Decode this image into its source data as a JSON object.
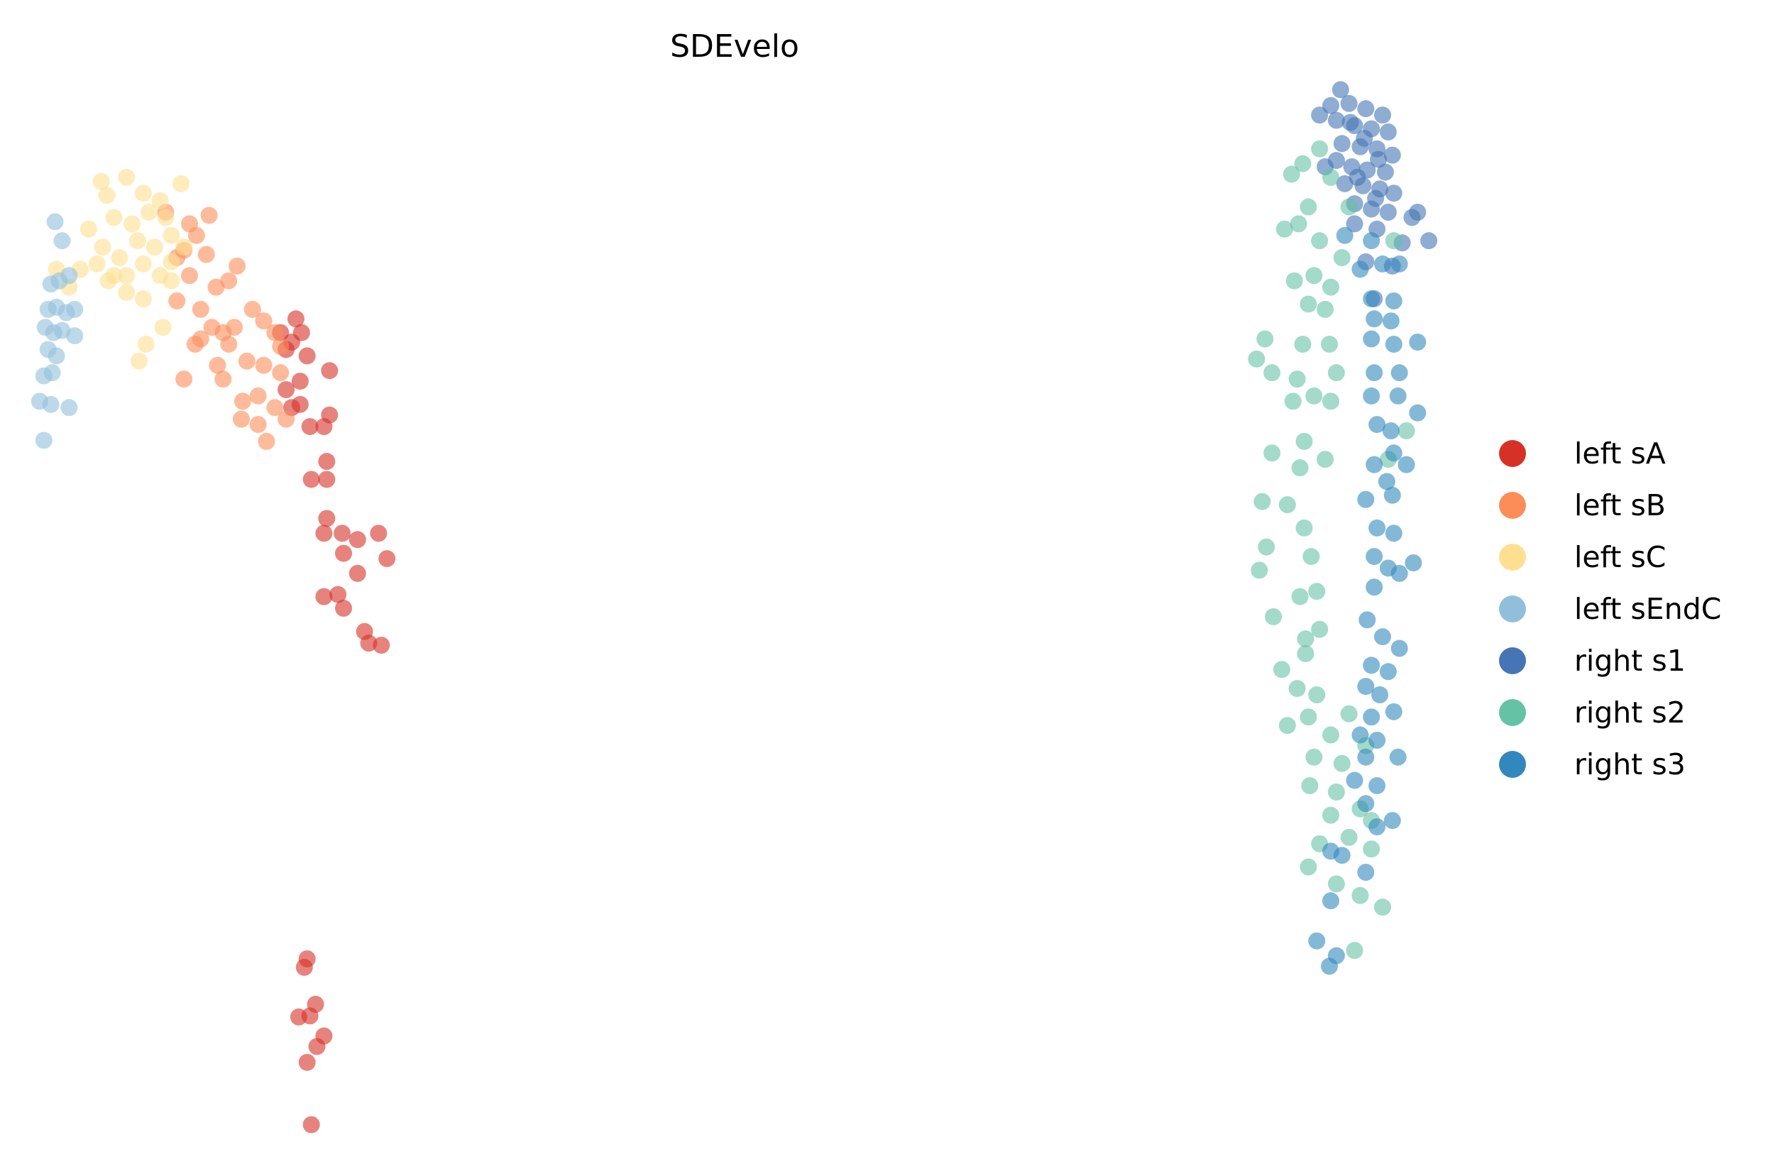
{
  "chart_data": {
    "type": "scatter",
    "title": "SDEvelo",
    "xlabel": "",
    "ylabel": "",
    "xlim": [
      0,
      100
    ],
    "ylim": [
      0,
      100
    ],
    "grid": false,
    "axes_visible": false,
    "legend_placement": "right",
    "marker_alpha": 0.6,
    "series": [
      {
        "name": "left sA",
        "color": "#d73027",
        "points": [
          [
            18.7,
            77.4
          ],
          [
            18.4,
            75.2
          ],
          [
            18.0,
            74.5
          ],
          [
            19.5,
            73.9
          ],
          [
            21.1,
            72.5
          ],
          [
            19.0,
            71.5
          ],
          [
            18.0,
            70.7
          ],
          [
            18.4,
            69.0
          ],
          [
            19.0,
            69.3
          ],
          [
            19.7,
            67.2
          ],
          [
            21.1,
            68.3
          ],
          [
            20.7,
            67.2
          ],
          [
            20.9,
            63.9
          ],
          [
            19.8,
            62.2
          ],
          [
            20.9,
            62.2
          ],
          [
            20.9,
            58.5
          ],
          [
            22.0,
            57.1
          ],
          [
            20.7,
            57.1
          ],
          [
            23.1,
            56.5
          ],
          [
            24.6,
            57.1
          ],
          [
            25.2,
            54.7
          ],
          [
            22.1,
            55.2
          ],
          [
            23.1,
            53.3
          ],
          [
            21.7,
            51.3
          ],
          [
            20.7,
            51.1
          ],
          [
            22.1,
            50.0
          ],
          [
            23.6,
            47.8
          ],
          [
            23.9,
            46.7
          ],
          [
            24.8,
            46.5
          ],
          [
            19.5,
            16.8
          ],
          [
            19.3,
            16.0
          ],
          [
            20.1,
            12.5
          ],
          [
            19.7,
            11.4
          ],
          [
            18.9,
            11.3
          ],
          [
            20.7,
            9.5
          ],
          [
            20.2,
            8.5
          ],
          [
            19.5,
            7.0
          ],
          [
            19.8,
            1.1
          ],
          [
            17.6,
            76.1
          ],
          [
            19.1,
            76.1
          ]
        ]
      },
      {
        "name": "left sB",
        "color": "#fc8d59",
        "points": [
          [
            9.4,
            87.5
          ],
          [
            12.5,
            87.2
          ],
          [
            11.1,
            86.4
          ],
          [
            11.6,
            85.3
          ],
          [
            10.7,
            83.9
          ],
          [
            12.3,
            83.5
          ],
          [
            14.5,
            82.4
          ],
          [
            13.9,
            81.0
          ],
          [
            11.1,
            81.5
          ],
          [
            10.2,
            79.1
          ],
          [
            11.9,
            78.3
          ],
          [
            12.7,
            76.6
          ],
          [
            13.5,
            76.1
          ],
          [
            11.9,
            75.5
          ],
          [
            13.9,
            75.0
          ],
          [
            15.6,
            78.3
          ],
          [
            16.4,
            77.2
          ],
          [
            17.2,
            76.1
          ],
          [
            15.2,
            73.4
          ],
          [
            16.4,
            73.0
          ],
          [
            17.6,
            72.3
          ],
          [
            10.7,
            71.7
          ],
          [
            13.5,
            71.7
          ],
          [
            14.9,
            69.6
          ],
          [
            16.0,
            70.1
          ],
          [
            17.2,
            69.0
          ],
          [
            16.0,
            67.4
          ],
          [
            16.6,
            65.8
          ],
          [
            18.0,
            67.9
          ],
          [
            14.8,
            67.9
          ],
          [
            17.6,
            74.8
          ],
          [
            13.0,
            80.4
          ],
          [
            10.2,
            83.2
          ],
          [
            11.5,
            75.0
          ],
          [
            14.3,
            76.6
          ],
          [
            13.1,
            73.0
          ]
        ]
      },
      {
        "name": "left sC",
        "color": "#fee090",
        "points": [
          [
            4.8,
            90.4
          ],
          [
            6.6,
            90.8
          ],
          [
            10.5,
            90.2
          ],
          [
            5.2,
            89.1
          ],
          [
            7.8,
            89.3
          ],
          [
            9.0,
            88.6
          ],
          [
            5.7,
            87.0
          ],
          [
            8.2,
            87.5
          ],
          [
            7.0,
            86.4
          ],
          [
            3.9,
            85.9
          ],
          [
            9.4,
            87.0
          ],
          [
            4.9,
            84.2
          ],
          [
            6.1,
            83.2
          ],
          [
            7.4,
            84.8
          ],
          [
            8.6,
            84.2
          ],
          [
            9.8,
            85.3
          ],
          [
            10.7,
            84.2
          ],
          [
            3.3,
            82.1
          ],
          [
            4.5,
            82.6
          ],
          [
            5.7,
            81.5
          ],
          [
            7.8,
            82.6
          ],
          [
            9.0,
            81.5
          ],
          [
            6.6,
            79.9
          ],
          [
            7.8,
            79.3
          ],
          [
            9.8,
            81.0
          ],
          [
            2.5,
            80.4
          ],
          [
            1.6,
            82.1
          ],
          [
            6.6,
            81.5
          ],
          [
            8.0,
            75.0
          ],
          [
            7.5,
            73.4
          ],
          [
            9.2,
            76.6
          ],
          [
            5.3,
            81.0
          ],
          [
            9.8,
            82.8
          ]
        ]
      },
      {
        "name": "left sEndC",
        "color": "#91bfdb",
        "points": [
          [
            1.5,
            86.6
          ],
          [
            2.0,
            84.8
          ],
          [
            1.2,
            80.7
          ],
          [
            1.8,
            81.0
          ],
          [
            1.0,
            78.3
          ],
          [
            1.6,
            78.5
          ],
          [
            2.3,
            78.0
          ],
          [
            0.8,
            76.6
          ],
          [
            1.4,
            76.1
          ],
          [
            2.0,
            76.3
          ],
          [
            2.9,
            75.8
          ],
          [
            1.0,
            74.5
          ],
          [
            1.6,
            73.9
          ],
          [
            0.7,
            72.0
          ],
          [
            1.3,
            72.3
          ],
          [
            0.4,
            69.6
          ],
          [
            1.2,
            69.3
          ],
          [
            2.5,
            69.0
          ],
          [
            0.7,
            65.9
          ],
          [
            2.5,
            81.5
          ],
          [
            2.9,
            78.3
          ]
        ]
      },
      {
        "name": "right s1",
        "color": "#4575b4",
        "points": [
          [
            93.3,
            99.1
          ],
          [
            92.6,
            97.6
          ],
          [
            93.9,
            97.8
          ],
          [
            95.1,
            97.3
          ],
          [
            96.3,
            96.7
          ],
          [
            93.0,
            96.2
          ],
          [
            94.3,
            95.7
          ],
          [
            95.5,
            95.4
          ],
          [
            96.7,
            95.1
          ],
          [
            93.4,
            94.0
          ],
          [
            94.7,
            93.7
          ],
          [
            95.9,
            93.5
          ],
          [
            97.0,
            92.9
          ],
          [
            93.0,
            92.4
          ],
          [
            94.1,
            91.8
          ],
          [
            95.2,
            91.5
          ],
          [
            96.5,
            91.3
          ],
          [
            93.6,
            90.2
          ],
          [
            94.9,
            90.0
          ],
          [
            96.1,
            89.7
          ],
          [
            97.1,
            89.3
          ],
          [
            94.3,
            88.3
          ],
          [
            95.5,
            87.8
          ],
          [
            96.7,
            87.5
          ],
          [
            98.8,
            87.5
          ],
          [
            99.6,
            84.8
          ],
          [
            97.7,
            84.6
          ],
          [
            94.3,
            86.4
          ],
          [
            95.9,
            85.9
          ],
          [
            95.1,
            82.8
          ],
          [
            97.0,
            82.4
          ],
          [
            91.8,
            96.7
          ],
          [
            92.2,
            91.8
          ],
          [
            95.7,
            79.3
          ],
          [
            98.4,
            87.0
          ],
          [
            94.0,
            96.0
          ],
          [
            95.0,
            94.5
          ],
          [
            96.0,
            92.5
          ],
          [
            94.5,
            90.8
          ],
          [
            95.8,
            88.8
          ]
        ]
      },
      {
        "name": "right s2",
        "color": "#66c2a5",
        "points": [
          [
            90.6,
            92.1
          ],
          [
            89.8,
            91.1
          ],
          [
            92.6,
            90.8
          ],
          [
            91.0,
            88.0
          ],
          [
            89.3,
            85.9
          ],
          [
            90.3,
            86.4
          ],
          [
            91.8,
            84.8
          ],
          [
            93.4,
            83.2
          ],
          [
            90.0,
            81.0
          ],
          [
            91.4,
            81.5
          ],
          [
            92.6,
            80.4
          ],
          [
            91.0,
            78.8
          ],
          [
            92.2,
            78.3
          ],
          [
            87.9,
            75.5
          ],
          [
            87.3,
            73.6
          ],
          [
            88.4,
            72.3
          ],
          [
            90.6,
            75.0
          ],
          [
            92.5,
            75.0
          ],
          [
            93.0,
            72.3
          ],
          [
            90.2,
            71.7
          ],
          [
            91.4,
            70.1
          ],
          [
            89.9,
            69.6
          ],
          [
            92.6,
            69.6
          ],
          [
            90.7,
            65.8
          ],
          [
            88.4,
            64.7
          ],
          [
            90.4,
            63.3
          ],
          [
            92.2,
            64.1
          ],
          [
            89.5,
            59.8
          ],
          [
            87.7,
            60.1
          ],
          [
            90.7,
            57.6
          ],
          [
            91.2,
            54.9
          ],
          [
            88.0,
            55.8
          ],
          [
            87.5,
            53.6
          ],
          [
            90.4,
            51.1
          ],
          [
            91.6,
            51.6
          ],
          [
            88.5,
            49.2
          ],
          [
            90.8,
            47.1
          ],
          [
            91.8,
            48.0
          ],
          [
            89.1,
            44.2
          ],
          [
            90.8,
            45.7
          ],
          [
            90.2,
            42.4
          ],
          [
            91.6,
            41.8
          ],
          [
            89.5,
            38.9
          ],
          [
            91.0,
            39.7
          ],
          [
            92.6,
            38.0
          ],
          [
            93.9,
            40.0
          ],
          [
            91.4,
            35.9
          ],
          [
            93.4,
            35.3
          ],
          [
            95.1,
            37.0
          ],
          [
            91.1,
            33.2
          ],
          [
            93.0,
            32.6
          ],
          [
            92.6,
            30.4
          ],
          [
            94.7,
            31.0
          ],
          [
            91.8,
            27.7
          ],
          [
            93.9,
            28.3
          ],
          [
            95.5,
            27.2
          ],
          [
            96.7,
            64.1
          ],
          [
            98.0,
            66.8
          ],
          [
            93.0,
            23.9
          ],
          [
            91.0,
            25.5
          ],
          [
            94.7,
            22.8
          ],
          [
            96.3,
            21.7
          ],
          [
            94.3,
            17.6
          ],
          [
            95.5,
            29.9
          ],
          [
            93.9,
            88.0
          ],
          [
            91.8,
            93.5
          ],
          [
            97.1,
            84.8
          ]
        ]
      },
      {
        "name": "right s3",
        "color": "#3288bd",
        "points": [
          [
            95.5,
            84.8
          ],
          [
            96.3,
            82.6
          ],
          [
            94.7,
            82.1
          ],
          [
            97.5,
            82.6
          ],
          [
            95.5,
            79.3
          ],
          [
            97.1,
            79.1
          ],
          [
            95.7,
            77.4
          ],
          [
            96.9,
            77.2
          ],
          [
            95.5,
            75.5
          ],
          [
            97.1,
            75.0
          ],
          [
            98.8,
            75.2
          ],
          [
            95.7,
            72.3
          ],
          [
            97.5,
            72.3
          ],
          [
            95.5,
            70.1
          ],
          [
            97.4,
            70.1
          ],
          [
            98.8,
            68.5
          ],
          [
            95.9,
            67.4
          ],
          [
            96.9,
            66.8
          ],
          [
            95.7,
            63.6
          ],
          [
            97.1,
            64.7
          ],
          [
            98.0,
            63.6
          ],
          [
            96.6,
            62.0
          ],
          [
            95.1,
            60.3
          ],
          [
            97.0,
            60.7
          ],
          [
            95.9,
            57.6
          ],
          [
            97.1,
            57.1
          ],
          [
            98.5,
            54.3
          ],
          [
            95.7,
            54.9
          ],
          [
            96.7,
            53.8
          ],
          [
            95.7,
            52.0
          ],
          [
            97.5,
            53.3
          ],
          [
            95.2,
            48.9
          ],
          [
            96.3,
            47.3
          ],
          [
            97.5,
            46.2
          ],
          [
            95.5,
            44.6
          ],
          [
            96.7,
            44.0
          ],
          [
            95.1,
            42.6
          ],
          [
            96.1,
            41.8
          ],
          [
            97.1,
            40.2
          ],
          [
            95.5,
            39.7
          ],
          [
            94.7,
            38.0
          ],
          [
            95.9,
            37.5
          ],
          [
            97.4,
            35.9
          ],
          [
            95.1,
            35.9
          ],
          [
            94.3,
            33.7
          ],
          [
            95.9,
            33.2
          ],
          [
            95.1,
            31.5
          ],
          [
            97.0,
            29.9
          ],
          [
            92.6,
            27.0
          ],
          [
            93.4,
            26.6
          ],
          [
            92.6,
            22.3
          ],
          [
            91.6,
            18.5
          ],
          [
            93.0,
            17.1
          ],
          [
            92.5,
            16.1
          ],
          [
            95.1,
            25.0
          ],
          [
            95.9,
            29.3
          ],
          [
            93.6,
            85.3
          ]
        ]
      }
    ]
  }
}
